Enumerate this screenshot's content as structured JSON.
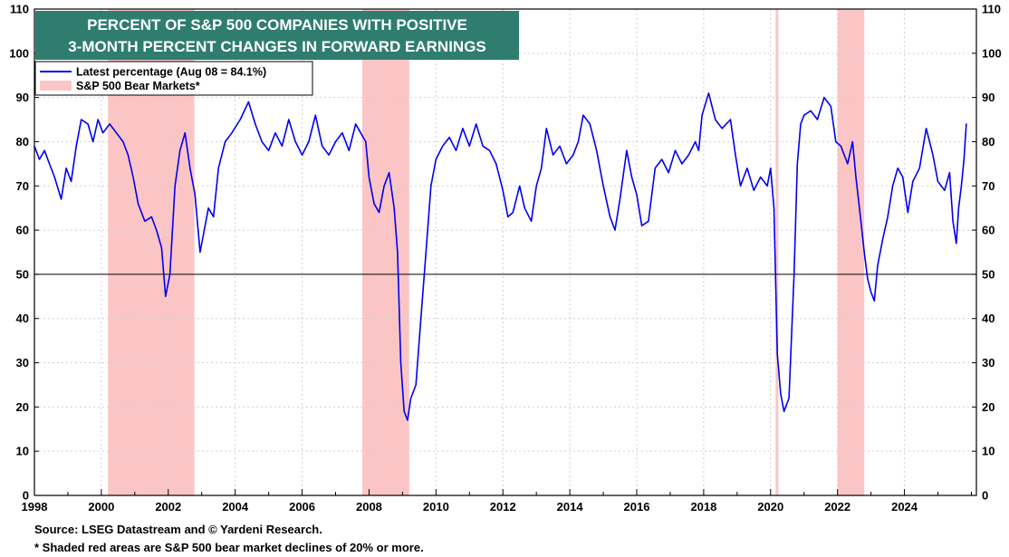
{
  "chart_data": {
    "type": "line",
    "title_lines": [
      "PERCENT OF S&P 500 COMPANIES WITH POSITIVE",
      "3-MONTH PERCENT CHANGES IN FORWARD EARNINGS"
    ],
    "xlabel": "",
    "ylabel": "",
    "xlim": [
      1998,
      2026.15
    ],
    "ylim": [
      0,
      110
    ],
    "x_ticks": [
      1998,
      2000,
      2002,
      2004,
      2006,
      2008,
      2010,
      2012,
      2014,
      2016,
      2018,
      2020,
      2022,
      2024
    ],
    "y_ticks": [
      0,
      10,
      20,
      30,
      40,
      50,
      60,
      70,
      80,
      90,
      100,
      110
    ],
    "reference_line": 50,
    "series": [
      {
        "name": "Latest percentage (Aug 08 = 84.1%)",
        "color": "#0000ee",
        "points": [
          [
            1998.0,
            79
          ],
          [
            1998.15,
            76
          ],
          [
            1998.3,
            78
          ],
          [
            1998.45,
            75
          ],
          [
            1998.6,
            72
          ],
          [
            1998.8,
            67
          ],
          [
            1998.95,
            74
          ],
          [
            1999.1,
            71
          ],
          [
            1999.25,
            79
          ],
          [
            1999.4,
            85
          ],
          [
            1999.6,
            84
          ],
          [
            1999.75,
            80
          ],
          [
            1999.9,
            85
          ],
          [
            2000.05,
            82
          ],
          [
            2000.25,
            84
          ],
          [
            2000.45,
            82
          ],
          [
            2000.65,
            80
          ],
          [
            2000.8,
            77
          ],
          [
            2000.95,
            72
          ],
          [
            2001.1,
            66
          ],
          [
            2001.3,
            62
          ],
          [
            2001.5,
            63
          ],
          [
            2001.65,
            60
          ],
          [
            2001.8,
            56
          ],
          [
            2001.92,
            45
          ],
          [
            2002.05,
            50
          ],
          [
            2002.2,
            70
          ],
          [
            2002.35,
            78
          ],
          [
            2002.5,
            82
          ],
          [
            2002.65,
            74
          ],
          [
            2002.8,
            68
          ],
          [
            2002.95,
            55
          ],
          [
            2003.05,
            59
          ],
          [
            2003.2,
            65
          ],
          [
            2003.35,
            63
          ],
          [
            2003.5,
            74
          ],
          [
            2003.7,
            80
          ],
          [
            2003.9,
            82
          ],
          [
            2004.15,
            85
          ],
          [
            2004.4,
            89
          ],
          [
            2004.6,
            84
          ],
          [
            2004.8,
            80
          ],
          [
            2005.0,
            78
          ],
          [
            2005.2,
            82
          ],
          [
            2005.4,
            79
          ],
          [
            2005.6,
            85
          ],
          [
            2005.8,
            80
          ],
          [
            2006.0,
            77
          ],
          [
            2006.2,
            80
          ],
          [
            2006.4,
            86
          ],
          [
            2006.6,
            79
          ],
          [
            2006.8,
            77
          ],
          [
            2007.0,
            80
          ],
          [
            2007.2,
            82
          ],
          [
            2007.4,
            78
          ],
          [
            2007.6,
            84
          ],
          [
            2007.75,
            82
          ],
          [
            2007.9,
            80
          ],
          [
            2008.0,
            72
          ],
          [
            2008.15,
            66
          ],
          [
            2008.3,
            64
          ],
          [
            2008.45,
            70
          ],
          [
            2008.6,
            73
          ],
          [
            2008.75,
            65
          ],
          [
            2008.85,
            55
          ],
          [
            2008.95,
            30
          ],
          [
            2009.05,
            19
          ],
          [
            2009.15,
            17
          ],
          [
            2009.25,
            22
          ],
          [
            2009.4,
            25
          ],
          [
            2009.55,
            40
          ],
          [
            2009.7,
            55
          ],
          [
            2009.85,
            70
          ],
          [
            2010.0,
            76
          ],
          [
            2010.2,
            79
          ],
          [
            2010.4,
            81
          ],
          [
            2010.6,
            78
          ],
          [
            2010.8,
            83
          ],
          [
            2011.0,
            79
          ],
          [
            2011.2,
            84
          ],
          [
            2011.4,
            79
          ],
          [
            2011.6,
            78
          ],
          [
            2011.8,
            75
          ],
          [
            2012.0,
            69
          ],
          [
            2012.15,
            63
          ],
          [
            2012.3,
            64
          ],
          [
            2012.5,
            70
          ],
          [
            2012.65,
            65
          ],
          [
            2012.85,
            62
          ],
          [
            2013.0,
            70
          ],
          [
            2013.15,
            74
          ],
          [
            2013.3,
            83
          ],
          [
            2013.5,
            77
          ],
          [
            2013.7,
            79
          ],
          [
            2013.9,
            75
          ],
          [
            2014.1,
            77
          ],
          [
            2014.25,
            80
          ],
          [
            2014.4,
            86
          ],
          [
            2014.6,
            84
          ],
          [
            2014.8,
            78
          ],
          [
            2015.0,
            70
          ],
          [
            2015.2,
            63
          ],
          [
            2015.35,
            60
          ],
          [
            2015.5,
            67
          ],
          [
            2015.7,
            78
          ],
          [
            2015.85,
            72
          ],
          [
            2016.0,
            68
          ],
          [
            2016.15,
            61
          ],
          [
            2016.35,
            62
          ],
          [
            2016.55,
            74
          ],
          [
            2016.75,
            76
          ],
          [
            2016.95,
            73
          ],
          [
            2017.15,
            78
          ],
          [
            2017.35,
            75
          ],
          [
            2017.55,
            77
          ],
          [
            2017.75,
            80
          ],
          [
            2017.85,
            78
          ],
          [
            2017.95,
            86
          ],
          [
            2018.15,
            91
          ],
          [
            2018.35,
            85
          ],
          [
            2018.55,
            83
          ],
          [
            2018.8,
            85
          ],
          [
            2018.95,
            77
          ],
          [
            2019.1,
            70
          ],
          [
            2019.3,
            74
          ],
          [
            2019.5,
            69
          ],
          [
            2019.7,
            72
          ],
          [
            2019.9,
            70
          ],
          [
            2020.0,
            74
          ],
          [
            2020.1,
            65
          ],
          [
            2020.2,
            32
          ],
          [
            2020.3,
            23
          ],
          [
            2020.4,
            19
          ],
          [
            2020.55,
            22
          ],
          [
            2020.7,
            50
          ],
          [
            2020.8,
            75
          ],
          [
            2020.9,
            84
          ],
          [
            2021.0,
            86
          ],
          [
            2021.2,
            87
          ],
          [
            2021.4,
            85
          ],
          [
            2021.6,
            90
          ],
          [
            2021.8,
            88
          ],
          [
            2021.95,
            80
          ],
          [
            2022.1,
            79
          ],
          [
            2022.3,
            75
          ],
          [
            2022.45,
            80
          ],
          [
            2022.55,
            72
          ],
          [
            2022.7,
            62
          ],
          [
            2022.8,
            55
          ],
          [
            2022.9,
            49
          ],
          [
            2023.0,
            46
          ],
          [
            2023.1,
            44
          ],
          [
            2023.2,
            52
          ],
          [
            2023.35,
            58
          ],
          [
            2023.5,
            63
          ],
          [
            2023.65,
            70
          ],
          [
            2023.8,
            74
          ],
          [
            2023.95,
            72
          ],
          [
            2024.1,
            64
          ],
          [
            2024.25,
            71
          ],
          [
            2024.45,
            74
          ],
          [
            2024.65,
            83
          ],
          [
            2024.85,
            77
          ],
          [
            2025.0,
            71
          ],
          [
            2025.2,
            69
          ],
          [
            2025.35,
            73
          ],
          [
            2025.45,
            62
          ],
          [
            2025.55,
            57
          ],
          [
            2025.62,
            65
          ],
          [
            2025.7,
            70
          ],
          [
            2025.78,
            76
          ],
          [
            2025.85,
            84.1
          ]
        ]
      }
    ],
    "bear_markets": {
      "name": "S&P 500 Bear Markets*",
      "color": "#fcc5c5",
      "periods": [
        [
          2000.2,
          2002.78
        ],
        [
          2007.8,
          2009.2
        ],
        [
          2020.15,
          2020.23
        ],
        [
          2022.0,
          2022.8
        ]
      ]
    },
    "legend_position": "top-left",
    "grid": true
  },
  "footer": {
    "source": "Source: LSEG Datastream and © Yardeni Research.",
    "note": "* Shaded red areas are S&P 500 bear market declines of 20% or more."
  },
  "colors": {
    "title_bg": "#2e7d6f",
    "line": "#0000ee",
    "bear_shade": "#fcc5c5",
    "grid": "#d0d0d0"
  }
}
